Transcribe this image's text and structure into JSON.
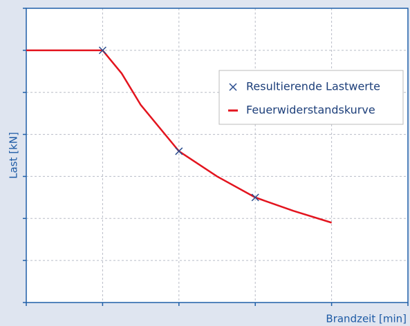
{
  "chart_data": {
    "type": "line",
    "xlabel": "Brandzeit [min]",
    "ylabel": "Last [kN]",
    "xlim": [
      0,
      5
    ],
    "xticks": [
      0,
      1,
      2,
      3,
      4,
      5
    ],
    "ylim": [
      0,
      7
    ],
    "yticks": [
      0,
      1,
      2,
      3,
      4,
      5,
      6,
      7
    ],
    "grid": true,
    "legend": "upper right",
    "series": [
      {
        "name": "Resultierende Lastwerte",
        "type": "scatter",
        "color": "#2a4d8f",
        "x": [
          1,
          2,
          3
        ],
        "values": [
          6,
          3.6,
          2.5
        ]
      },
      {
        "name": "Feuerwiderstandskurve",
        "type": "line",
        "color": "#e3141e",
        "x": [
          0,
          0.5,
          1,
          1.25,
          1.5,
          2,
          2.5,
          3,
          3.5,
          4
        ],
        "values": [
          6,
          6,
          6,
          5.45,
          4.7,
          3.6,
          3.0,
          2.5,
          2.18,
          1.9
        ]
      }
    ]
  }
}
